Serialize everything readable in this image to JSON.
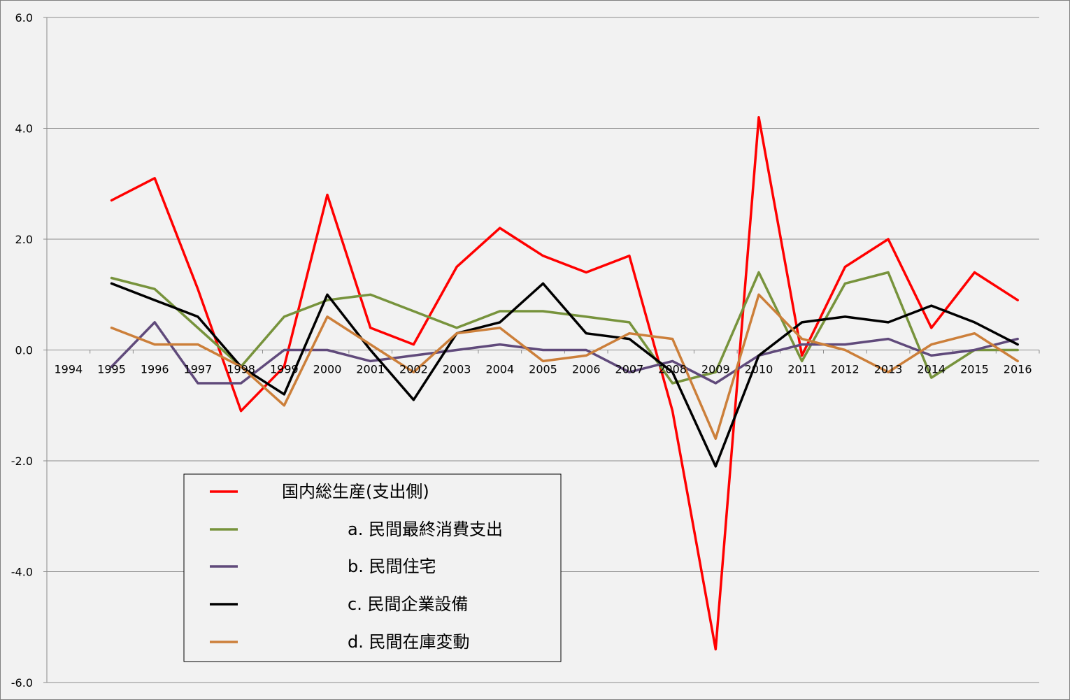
{
  "chart_data": {
    "type": "line",
    "title": "",
    "xlabel": "",
    "ylabel": "",
    "categories": [
      "1994",
      "1995",
      "1996",
      "1997",
      "1998",
      "1999",
      "2000",
      "2001",
      "2002",
      "2003",
      "2004",
      "2005",
      "2006",
      "2007",
      "2008",
      "2009",
      "2010",
      "2011",
      "2012",
      "2013",
      "2014",
      "2015",
      "2016"
    ],
    "ylim": [
      -6.0,
      6.0
    ],
    "yticks": [
      "-6.0",
      "-4.0",
      "-2.0",
      "0.0",
      "2.0",
      "4.0",
      "6.0"
    ],
    "grid": true,
    "legend_position": "bottom-left",
    "series": [
      {
        "name": "国内総生産(支出側)",
        "color": "#ff0000",
        "values": [
          null,
          2.7,
          3.1,
          1.1,
          -1.1,
          -0.3,
          2.8,
          0.4,
          0.1,
          1.5,
          2.2,
          1.7,
          1.4,
          1.7,
          -1.1,
          -5.4,
          4.2,
          -0.1,
          1.5,
          2.0,
          0.4,
          1.4,
          0.9
        ]
      },
      {
        "name": "a. 民間最終消費支出",
        "color": "#77933c",
        "values": [
          null,
          1.3,
          1.1,
          0.4,
          -0.3,
          0.6,
          0.9,
          1.0,
          0.7,
          0.4,
          0.7,
          0.7,
          0.6,
          0.5,
          -0.6,
          -0.4,
          1.4,
          -0.2,
          1.2,
          1.4,
          -0.5,
          0.0,
          0.0
        ]
      },
      {
        "name": "b. 民間住宅",
        "color": "#604a7b",
        "values": [
          null,
          -0.3,
          0.5,
          -0.6,
          -0.6,
          0.0,
          0.0,
          -0.2,
          -0.1,
          0.0,
          0.1,
          0.0,
          0.0,
          -0.4,
          -0.2,
          -0.6,
          -0.1,
          0.1,
          0.1,
          0.2,
          -0.1,
          0.0,
          0.2
        ]
      },
      {
        "name": "c. 民間企業設備",
        "color": "#000000",
        "values": [
          null,
          1.2,
          0.9,
          0.6,
          -0.3,
          -0.8,
          1.0,
          0.0,
          -0.9,
          0.3,
          0.5,
          1.2,
          0.3,
          0.2,
          -0.4,
          -2.1,
          -0.1,
          0.5,
          0.6,
          0.5,
          0.8,
          0.5,
          0.1
        ]
      },
      {
        "name": "d. 民間在庫変動",
        "color": "#cc7f3a",
        "values": [
          null,
          0.4,
          0.1,
          0.1,
          -0.3,
          -1.0,
          0.6,
          0.1,
          -0.4,
          0.3,
          0.4,
          -0.2,
          -0.1,
          0.3,
          0.2,
          -1.6,
          1.0,
          0.2,
          0.0,
          -0.4,
          0.1,
          0.3,
          -0.2
        ]
      }
    ]
  }
}
